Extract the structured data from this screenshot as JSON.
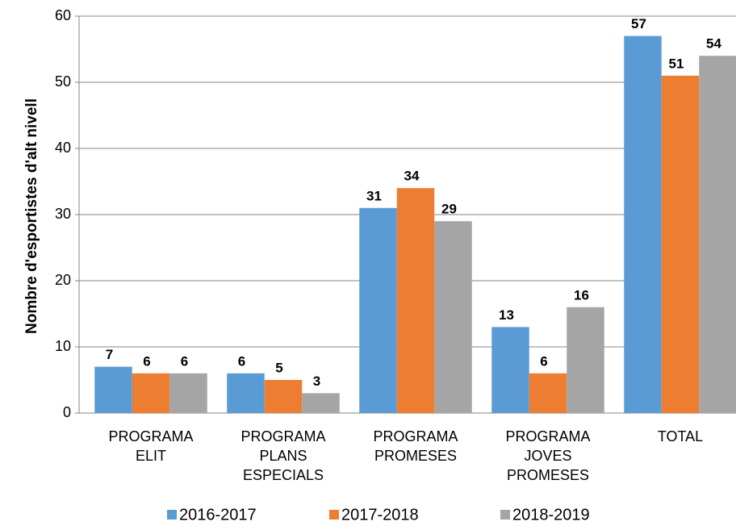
{
  "chart_data": {
    "type": "bar",
    "y_label": "Nombre d'esportistes  d'alt nivell",
    "categories": [
      [
        "PROGRAMA",
        "ELIT"
      ],
      [
        "PROGRAMA",
        "PLANS",
        "ESPECIALS"
      ],
      [
        "PROGRAMA",
        "PROMESES"
      ],
      [
        "PROGRAMA",
        "JOVES",
        "PROMESES"
      ],
      [
        "TOTAL"
      ]
    ],
    "series": [
      {
        "name": "2016-2017",
        "color": "#5b9bd5",
        "values": [
          7,
          6,
          31,
          13,
          57
        ]
      },
      {
        "name": "2017-2018",
        "color": "#ed7d31",
        "values": [
          6,
          5,
          34,
          6,
          51
        ]
      },
      {
        "name": "2018-2019",
        "color": "#a5a5a5",
        "values": [
          6,
          3,
          29,
          16,
          54
        ]
      }
    ],
    "ylim": [
      0,
      60
    ],
    "yticks": [
      0,
      10,
      20,
      30,
      40,
      50,
      60
    ],
    "grid": true,
    "legend": "bottom"
  }
}
